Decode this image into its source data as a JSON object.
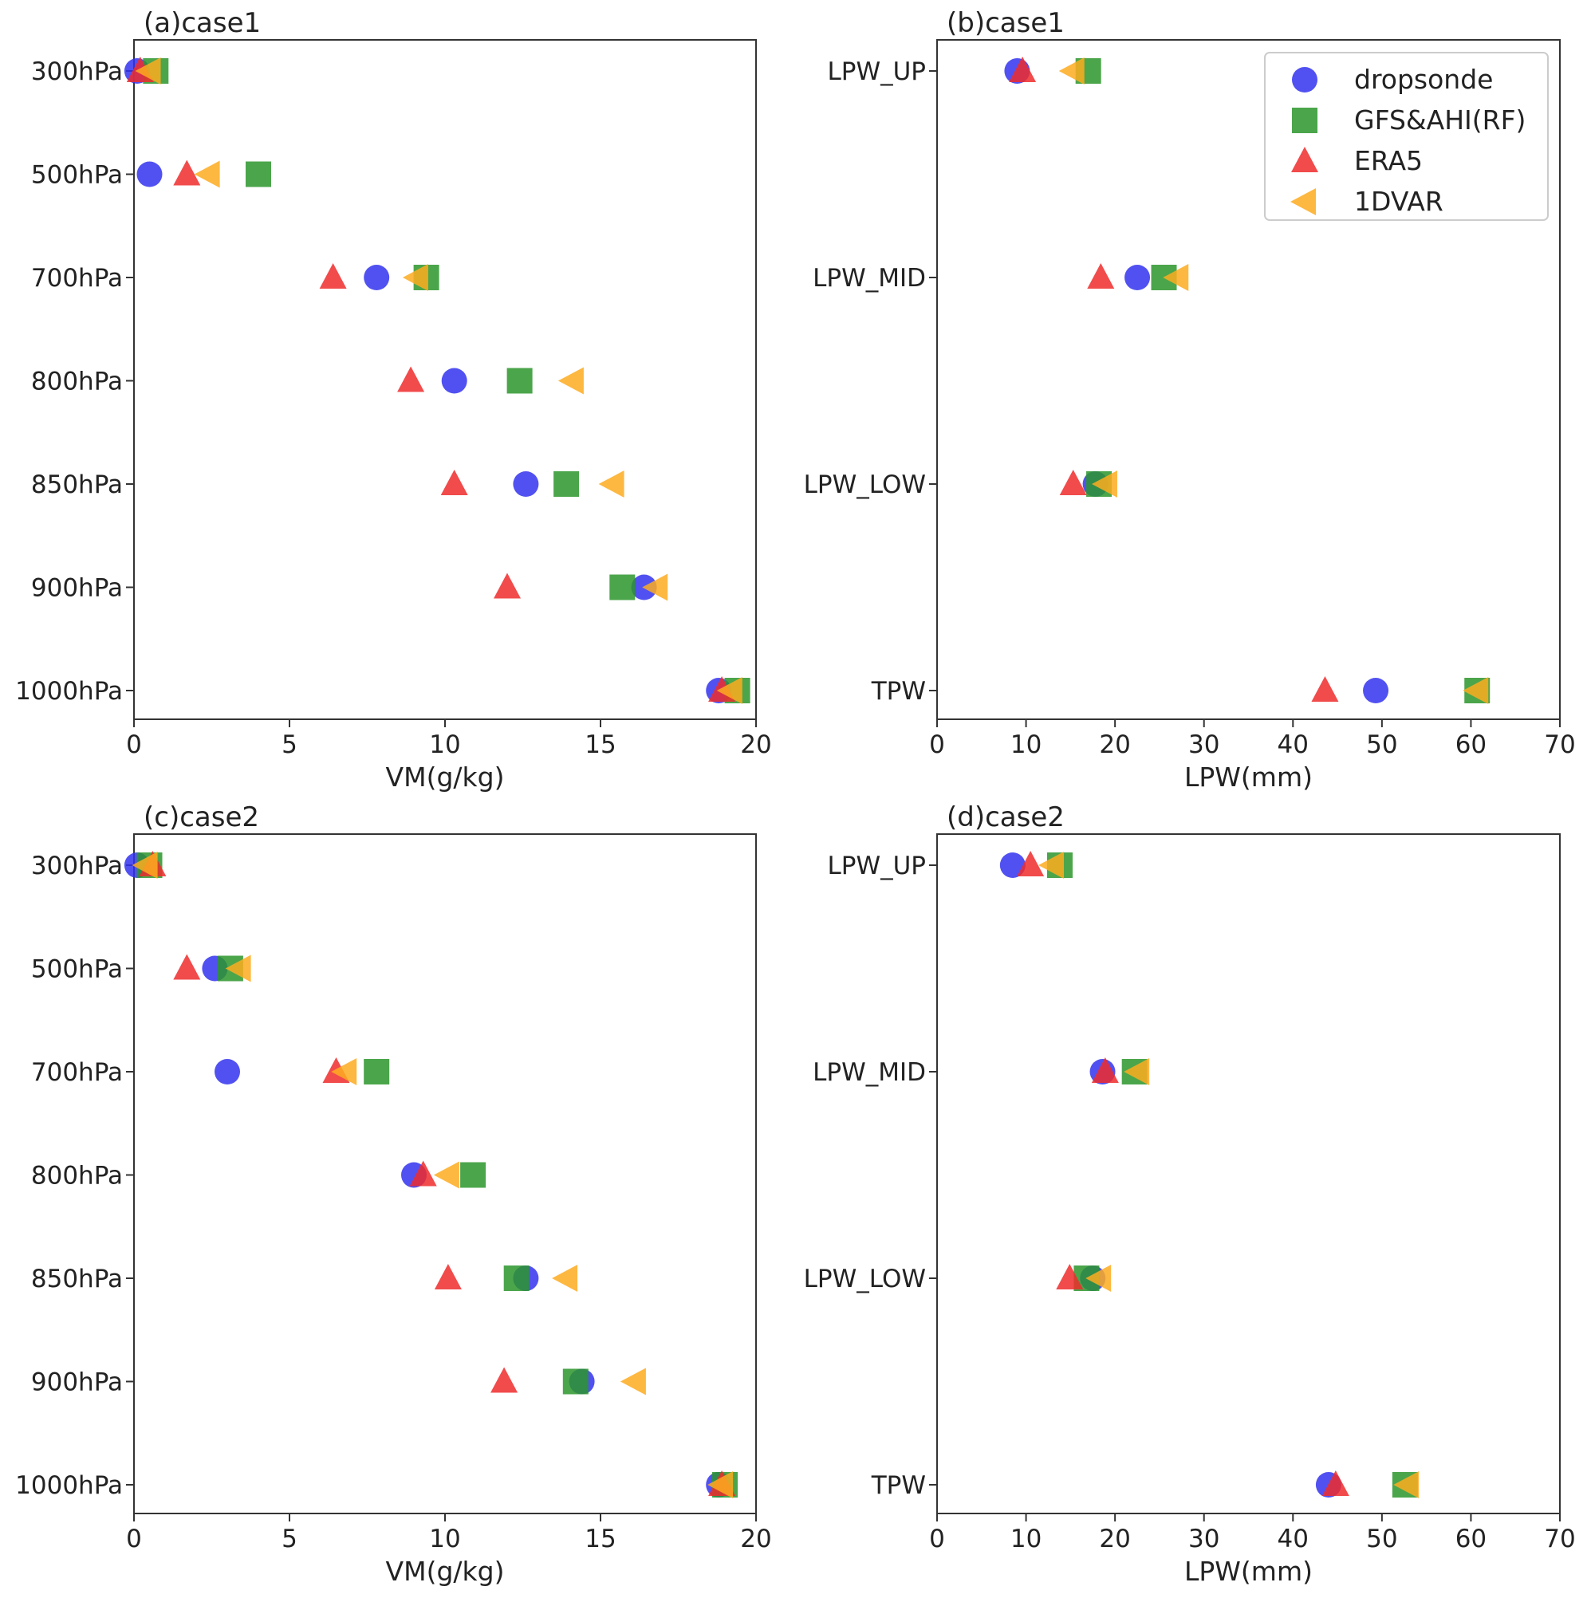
{
  "series": [
    {
      "name": "dropsonde",
      "color": "#3333ee",
      "marker": "circle"
    },
    {
      "name": "GFS&AHI(RF)",
      "color": "#2b952b",
      "marker": "square"
    },
    {
      "name": "ERA5",
      "color": "#ee2b2b",
      "marker": "triangle-up"
    },
    {
      "name": "1DVAR",
      "color": "#fdab20",
      "marker": "triangle-left"
    }
  ],
  "chart_data": [
    {
      "panel": "a",
      "type": "scatter",
      "title": "(a)case1",
      "xlabel": "VM(g/kg)",
      "xlim": [
        0,
        20
      ],
      "xticks": [
        "0",
        "5",
        "10",
        "15",
        "20"
      ],
      "categories": [
        "300hPa",
        "500hPa",
        "700hPa",
        "800hPa",
        "850hPa",
        "900hPa",
        "1000hPa"
      ],
      "series": [
        {
          "name": "dropsonde",
          "values": [
            0.1,
            0.5,
            7.8,
            10.3,
            12.6,
            16.4,
            18.8
          ]
        },
        {
          "name": "GFS&AHI(RF)",
          "values": [
            0.7,
            4.0,
            9.4,
            12.4,
            13.9,
            15.7,
            19.4
          ]
        },
        {
          "name": "ERA5",
          "values": [
            0.2,
            1.7,
            6.4,
            8.9,
            10.3,
            12.0,
            18.9
          ]
        },
        {
          "name": "1DVAR",
          "values": [
            0.5,
            2.4,
            9.1,
            14.1,
            15.4,
            16.8,
            19.2
          ]
        }
      ]
    },
    {
      "panel": "b",
      "type": "scatter",
      "title": "(b)case1",
      "xlabel": "LPW(mm)",
      "xlim": [
        0,
        70
      ],
      "xticks": [
        "0",
        "10",
        "20",
        "30",
        "40",
        "50",
        "60",
        "70"
      ],
      "categories": [
        "LPW_UP",
        "LPW_MID",
        "LPW_LOW",
        "TPW"
      ],
      "legend": "top-right",
      "series": [
        {
          "name": "dropsonde",
          "values": [
            9.0,
            22.5,
            17.8,
            49.3
          ]
        },
        {
          "name": "GFS&AHI(RF)",
          "values": [
            17.0,
            25.5,
            18.2,
            60.7
          ]
        },
        {
          "name": "ERA5",
          "values": [
            9.6,
            18.4,
            15.3,
            43.6
          ]
        },
        {
          "name": "1DVAR",
          "values": [
            15.3,
            27.0,
            19.0,
            60.7
          ]
        }
      ]
    },
    {
      "panel": "c",
      "type": "scatter",
      "title": "(c)case2",
      "xlabel": "VM(g/kg)",
      "xlim": [
        0,
        20
      ],
      "xticks": [
        "0",
        "5",
        "10",
        "15",
        "20"
      ],
      "categories": [
        "300hPa",
        "500hPa",
        "700hPa",
        "800hPa",
        "850hPa",
        "900hPa",
        "1000hPa"
      ],
      "series": [
        {
          "name": "dropsonde",
          "values": [
            0.1,
            2.6,
            3.0,
            9.0,
            12.6,
            14.4,
            18.8
          ]
        },
        {
          "name": "GFS&AHI(RF)",
          "values": [
            0.5,
            3.1,
            7.8,
            10.9,
            12.3,
            14.2,
            19.0
          ]
        },
        {
          "name": "ERA5",
          "values": [
            0.6,
            1.7,
            6.5,
            9.3,
            10.1,
            11.9,
            18.9
          ]
        },
        {
          "name": "1DVAR",
          "values": [
            0.4,
            3.4,
            6.8,
            10.1,
            13.9,
            16.1,
            18.9
          ]
        }
      ]
    },
    {
      "panel": "d",
      "type": "scatter",
      "title": "(d)case2",
      "xlabel": "LPW(mm)",
      "xlim": [
        0,
        70
      ],
      "xticks": [
        "0",
        "10",
        "20",
        "30",
        "40",
        "50",
        "60",
        "70"
      ],
      "categories": [
        "LPW_UP",
        "LPW_MID",
        "LPW_LOW",
        "TPW"
      ],
      "series": [
        {
          "name": "dropsonde",
          "values": [
            8.5,
            18.6,
            17.5,
            44.0
          ]
        },
        {
          "name": "GFS&AHI(RF)",
          "values": [
            13.8,
            22.2,
            16.8,
            52.6
          ]
        },
        {
          "name": "ERA5",
          "values": [
            10.5,
            18.9,
            14.9,
            44.8
          ]
        },
        {
          "name": "1DVAR",
          "values": [
            13.0,
            22.6,
            18.3,
            52.9
          ]
        }
      ]
    }
  ]
}
